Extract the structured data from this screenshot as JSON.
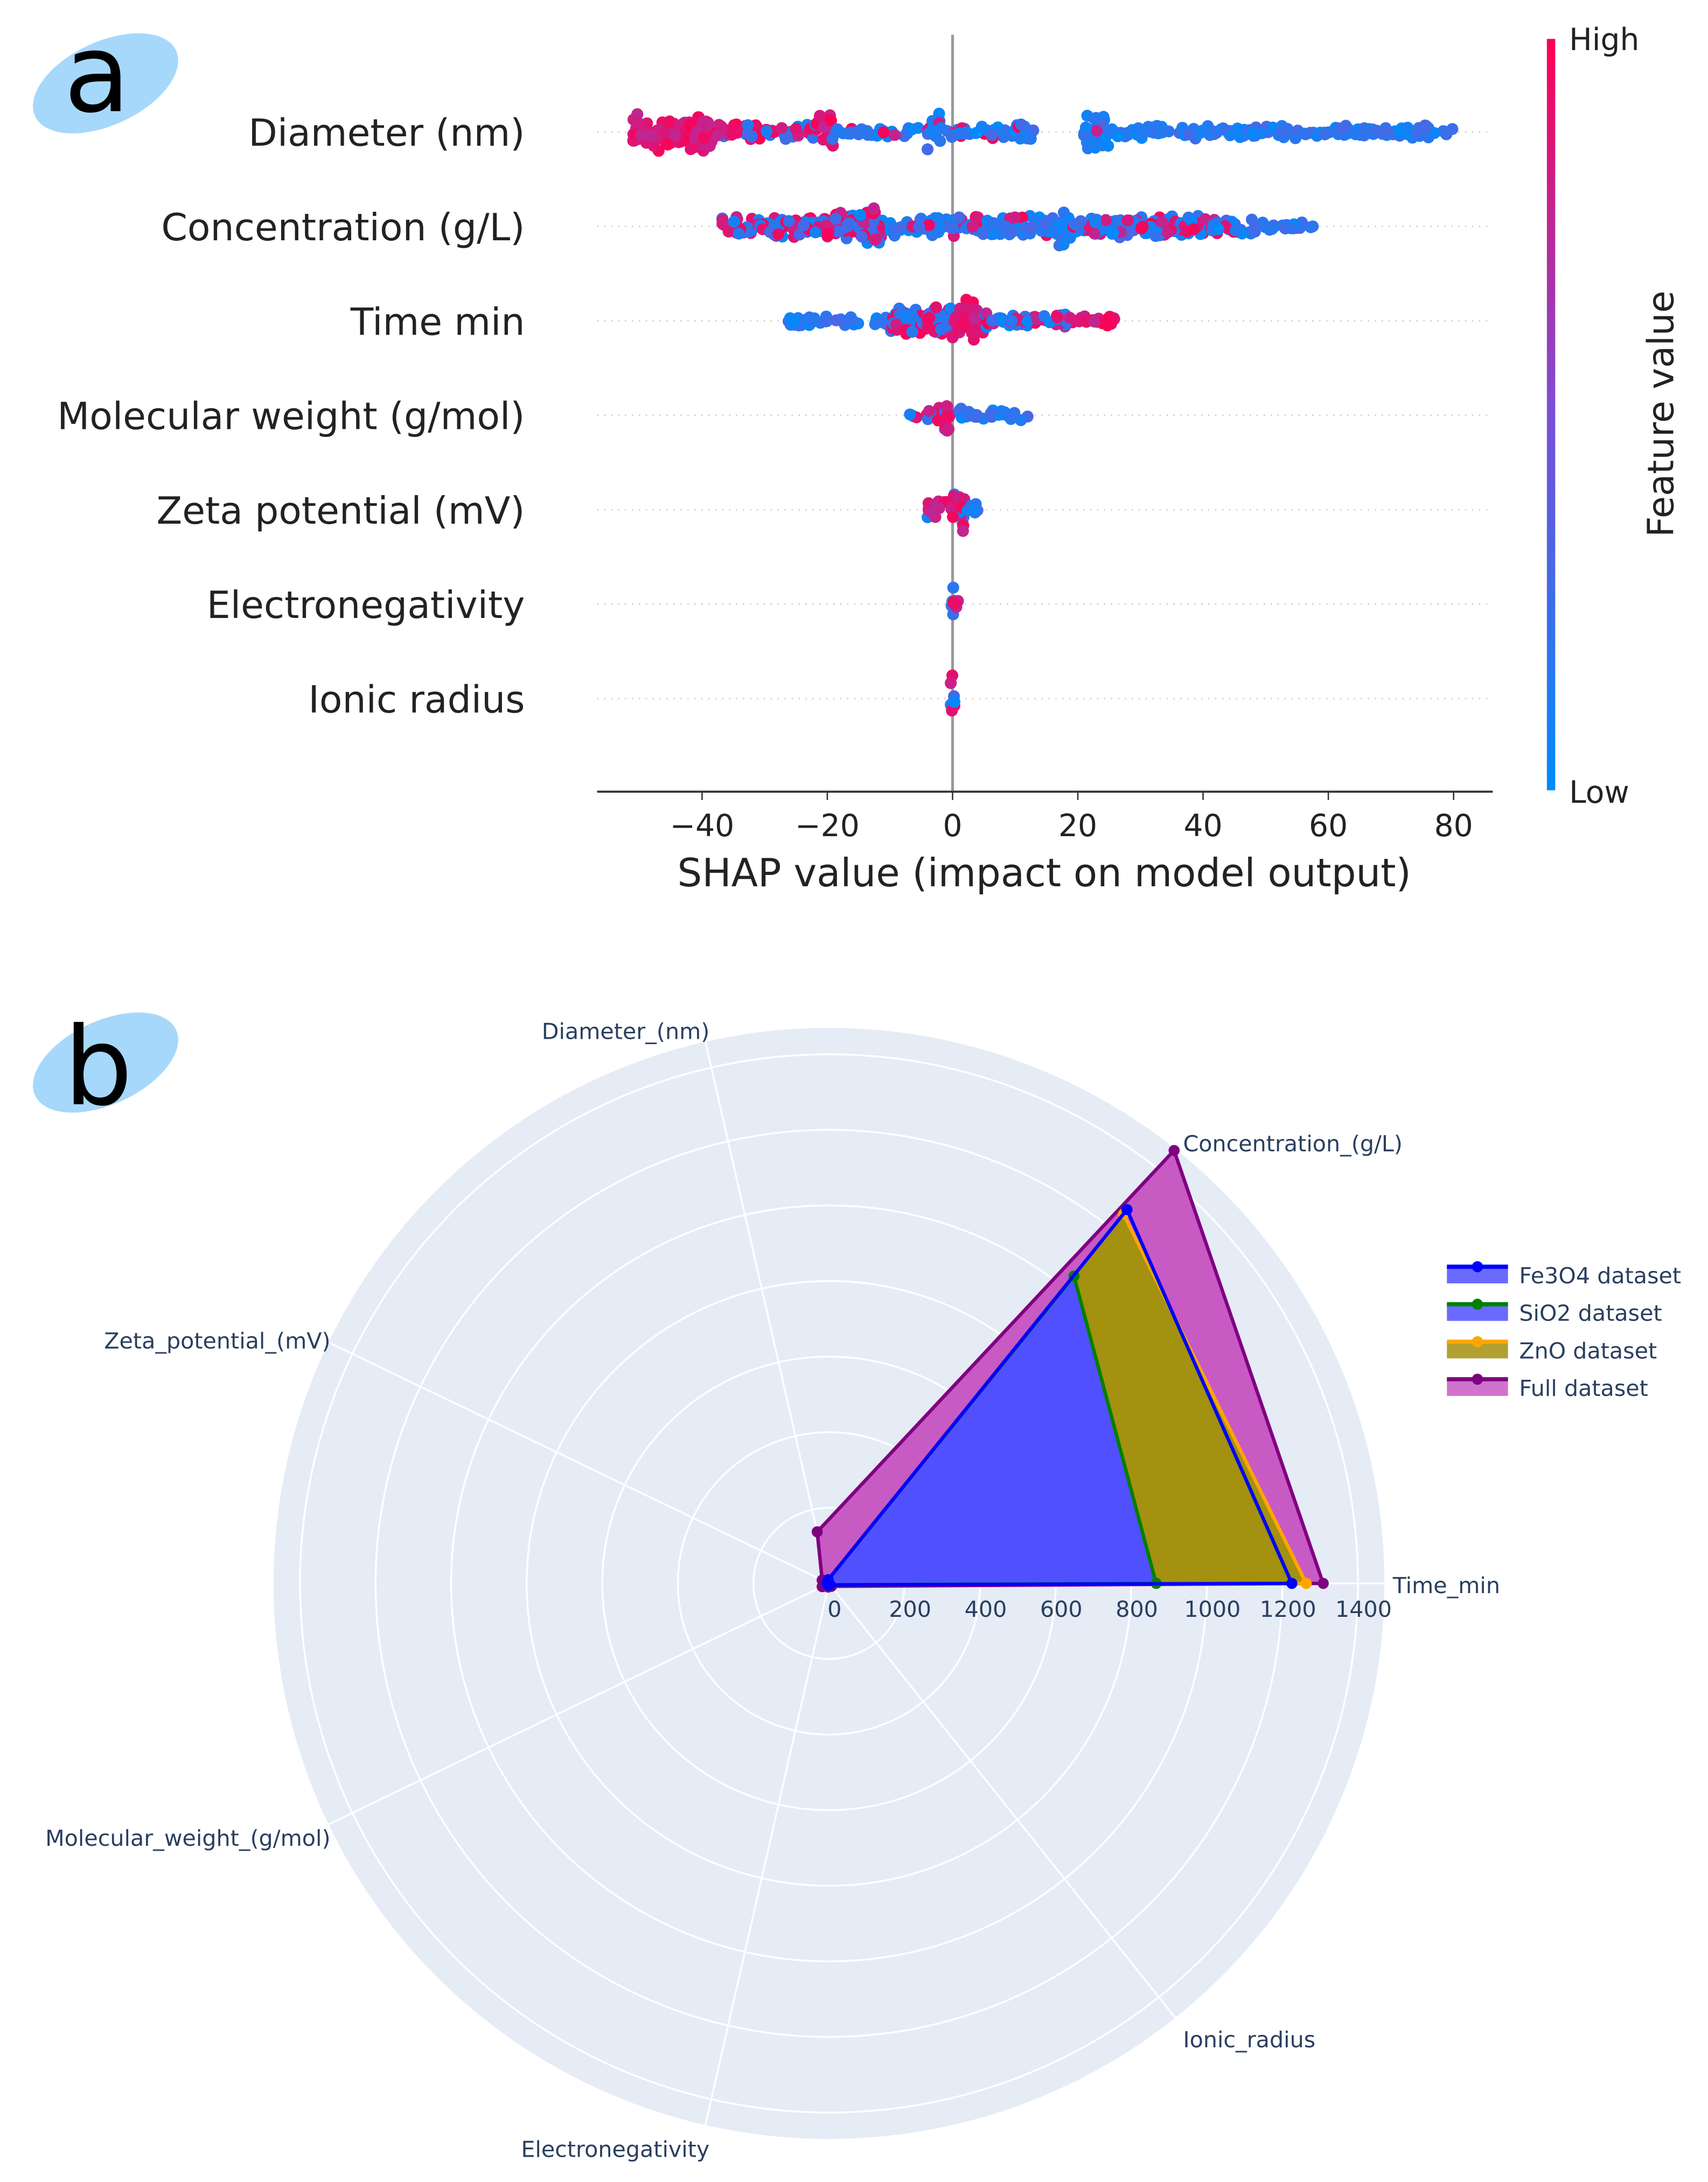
{
  "panels": {
    "a_label": "a",
    "b_label": "b"
  },
  "chart_data": [
    {
      "type": "scatter",
      "subtype": "shap-beeswarm",
      "title": "",
      "xlabel": "SHAP value (impact on model output)",
      "xlim": [
        -57,
        86
      ],
      "xticks": [
        -40,
        -20,
        0,
        20,
        40,
        60,
        80
      ],
      "xtick_labels": [
        "−40",
        "−20",
        "0",
        "20",
        "40",
        "60",
        "80"
      ],
      "features": [
        "Diameter (nm)",
        "Concentration (g/L)",
        "Time min",
        "Molecular weight (g/mol)",
        "Zeta potential (mV)",
        "Electronegativity",
        "Ionic radius"
      ],
      "colorbar": {
        "label": "Feature value",
        "high": "High",
        "low": "Low",
        "high_color": "#ff0052",
        "low_color": "#008bfb"
      },
      "clusters_note": "approximate point clusters per feature: [shap_min, shap_max, relative density, feature value 0=low..1=high]",
      "clusters": [
        [
          [
            -51,
            -38,
            14,
            0.97
          ],
          [
            -38,
            -30,
            8,
            0.85
          ],
          [
            -30,
            -22,
            6,
            0.5
          ],
          [
            -22,
            -19,
            14,
            0.75
          ],
          [
            -19,
            -5,
            4,
            0.2
          ],
          [
            -4,
            -2,
            15,
            0.18
          ],
          [
            -2,
            10,
            5,
            0.2
          ],
          [
            10,
            13,
            9,
            0.2
          ],
          [
            21,
            25,
            14,
            0.02
          ],
          [
            25,
            80,
            5,
            0.02
          ]
        ],
        [
          [
            -37,
            -28,
            8,
            0.5
          ],
          [
            -28,
            -15,
            10,
            0.45
          ],
          [
            -15,
            -11,
            16,
            0.4
          ],
          [
            -10,
            17,
            8,
            0.12
          ],
          [
            17,
            19,
            14,
            0.05
          ],
          [
            19,
            48,
            8,
            0.4
          ],
          [
            48,
            58,
            4,
            0.05
          ]
        ],
        [
          [
            -27,
            -10,
            4,
            0.1
          ],
          [
            -10,
            0,
            12,
            0.4
          ],
          [
            0,
            5,
            16,
            0.85
          ],
          [
            5,
            20,
            6,
            0.5
          ],
          [
            20,
            26,
            5,
            0.9
          ]
        ],
        [
          [
            -7,
            -1,
            6,
            0.5
          ],
          [
            -1.5,
            -0.5,
            18,
            0.95
          ],
          [
            1,
            2,
            10,
            0.03
          ],
          [
            2,
            12,
            4,
            0.03
          ]
        ],
        [
          [
            -4,
            0,
            8,
            0.95
          ],
          [
            0,
            2,
            18,
            0.8
          ],
          [
            2,
            4,
            6,
            0.05
          ]
        ],
        [
          [
            -0.3,
            0.3,
            18,
            0.2
          ],
          [
            0,
            1,
            4,
            0.95
          ]
        ],
        [
          [
            -0.3,
            0.3,
            20,
            0.55
          ]
        ]
      ]
    },
    {
      "type": "radar",
      "axes": [
        "Time_min",
        "Concentration_(g/L)",
        "Diameter_(nm)",
        "Zeta_potential_(mV)",
        "Molecular_weight_(g/mol)",
        "Electronegativity",
        "Ionic_radius"
      ],
      "radial_range": [
        0,
        1470
      ],
      "radial_ticks": [
        0,
        200,
        400,
        600,
        800,
        1000,
        1200,
        1400
      ],
      "radial_tick_labels": [
        "0",
        "200",
        "400",
        "600",
        "800",
        "1000",
        "1200",
        "1400"
      ],
      "legend_position": "right",
      "series": [
        {
          "name": "Fe3O4 dataset",
          "color": "#0000ff",
          "values": [
            1225,
            1265,
            10,
            5,
            5,
            5,
            5
          ]
        },
        {
          "name": "SiO2 dataset",
          "color": "#008000",
          "values": [
            866,
            1040,
            10,
            5,
            5,
            5,
            5
          ]
        },
        {
          "name": "ZnO dataset",
          "color": "#ffa500",
          "values": [
            1263,
            1250,
            10,
            5,
            5,
            5,
            5
          ]
        },
        {
          "name": "Full dataset",
          "color": "#800080",
          "values": [
            1308,
            1465,
            140,
            20,
            20,
            10,
            10
          ]
        }
      ]
    }
  ]
}
